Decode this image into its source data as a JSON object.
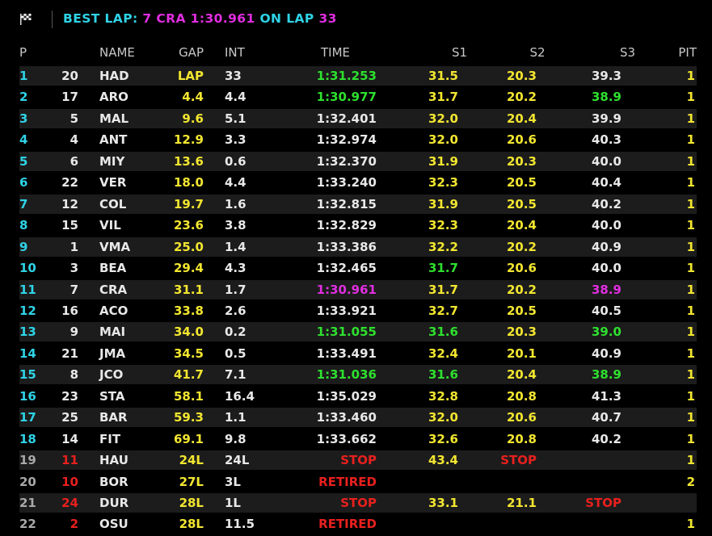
{
  "header": {
    "best_lap_label": "BEST LAP:",
    "best_lap_value": "7 CRA 1:30.961",
    "on_lap_label": "ON LAP",
    "lap_number": "33"
  },
  "columns": {
    "p": "P",
    "name": "NAME",
    "gap": "GAP",
    "int": "INT",
    "time": "TIME",
    "s1": "S1",
    "s2": "S2",
    "s3": "S3",
    "pit": "PIT"
  },
  "colors": {
    "cyan": "#2fd3e6",
    "yellow": "#f2e630",
    "green": "#2ee02e",
    "magenta": "#e02ee0",
    "red": "#e8201e",
    "row_alt": "#1c1c1c"
  },
  "rows": [
    {
      "p": "1",
      "num": "20",
      "name": "HAD",
      "gap": "LAP",
      "int": "33",
      "time": "1:31.253",
      "s1": "31.5",
      "s2": "20.3",
      "s3": "39.3",
      "pit": "1",
      "time_c": "green",
      "s1_c": "yellow",
      "s2_c": "yellow",
      "s3_c": "white",
      "p_c": "cyan",
      "num_c": "white"
    },
    {
      "p": "2",
      "num": "17",
      "name": "ARO",
      "gap": "4.4",
      "int": "4.4",
      "time": "1:30.977",
      "s1": "31.7",
      "s2": "20.2",
      "s3": "38.9",
      "pit": "1",
      "time_c": "green",
      "s1_c": "yellow",
      "s2_c": "yellow",
      "s3_c": "green",
      "p_c": "cyan",
      "num_c": "white"
    },
    {
      "p": "3",
      "num": "5",
      "name": "MAL",
      "gap": "9.6",
      "int": "5.1",
      "time": "1:32.401",
      "s1": "32.0",
      "s2": "20.4",
      "s3": "39.9",
      "pit": "1",
      "time_c": "white",
      "s1_c": "yellow",
      "s2_c": "yellow",
      "s3_c": "white",
      "p_c": "cyan",
      "num_c": "white"
    },
    {
      "p": "4",
      "num": "4",
      "name": "ANT",
      "gap": "12.9",
      "int": "3.3",
      "time": "1:32.974",
      "s1": "32.0",
      "s2": "20.6",
      "s3": "40.3",
      "pit": "1",
      "time_c": "white",
      "s1_c": "yellow",
      "s2_c": "yellow",
      "s3_c": "white",
      "p_c": "cyan",
      "num_c": "white"
    },
    {
      "p": "5",
      "num": "6",
      "name": "MIY",
      "gap": "13.6",
      "int": "0.6",
      "time": "1:32.370",
      "s1": "31.9",
      "s2": "20.3",
      "s3": "40.0",
      "pit": "1",
      "time_c": "white",
      "s1_c": "yellow",
      "s2_c": "yellow",
      "s3_c": "white",
      "p_c": "cyan",
      "num_c": "white"
    },
    {
      "p": "6",
      "num": "22",
      "name": "VER",
      "gap": "18.0",
      "int": "4.4",
      "time": "1:33.240",
      "s1": "32.3",
      "s2": "20.5",
      "s3": "40.4",
      "pit": "1",
      "time_c": "white",
      "s1_c": "yellow",
      "s2_c": "yellow",
      "s3_c": "white",
      "p_c": "cyan",
      "num_c": "white"
    },
    {
      "p": "7",
      "num": "12",
      "name": "COL",
      "gap": "19.7",
      "int": "1.6",
      "time": "1:32.815",
      "s1": "31.9",
      "s2": "20.5",
      "s3": "40.2",
      "pit": "1",
      "time_c": "white",
      "s1_c": "yellow",
      "s2_c": "yellow",
      "s3_c": "white",
      "p_c": "cyan",
      "num_c": "white"
    },
    {
      "p": "8",
      "num": "15",
      "name": "VIL",
      "gap": "23.6",
      "int": "3.8",
      "time": "1:32.829",
      "s1": "32.3",
      "s2": "20.4",
      "s3": "40.0",
      "pit": "1",
      "time_c": "white",
      "s1_c": "yellow",
      "s2_c": "yellow",
      "s3_c": "white",
      "p_c": "cyan",
      "num_c": "white"
    },
    {
      "p": "9",
      "num": "1",
      "name": "VMA",
      "gap": "25.0",
      "int": "1.4",
      "time": "1:33.386",
      "s1": "32.2",
      "s2": "20.2",
      "s3": "40.9",
      "pit": "1",
      "time_c": "white",
      "s1_c": "yellow",
      "s2_c": "yellow",
      "s3_c": "white",
      "p_c": "cyan",
      "num_c": "white"
    },
    {
      "p": "10",
      "num": "3",
      "name": "BEA",
      "gap": "29.4",
      "int": "4.3",
      "time": "1:32.465",
      "s1": "31.7",
      "s2": "20.6",
      "s3": "40.0",
      "pit": "1",
      "time_c": "white",
      "s1_c": "green",
      "s2_c": "yellow",
      "s3_c": "white",
      "p_c": "cyan",
      "num_c": "white"
    },
    {
      "p": "11",
      "num": "7",
      "name": "CRA",
      "gap": "31.1",
      "int": "1.7",
      "time": "1:30.961",
      "s1": "31.7",
      "s2": "20.2",
      "s3": "38.9",
      "pit": "1",
      "time_c": "magenta",
      "s1_c": "yellow",
      "s2_c": "yellow",
      "s3_c": "magenta",
      "p_c": "cyan",
      "num_c": "white"
    },
    {
      "p": "12",
      "num": "16",
      "name": "ACO",
      "gap": "33.8",
      "int": "2.6",
      "time": "1:33.921",
      "s1": "32.7",
      "s2": "20.5",
      "s3": "40.5",
      "pit": "1",
      "time_c": "white",
      "s1_c": "yellow",
      "s2_c": "yellow",
      "s3_c": "white",
      "p_c": "cyan",
      "num_c": "white"
    },
    {
      "p": "13",
      "num": "9",
      "name": "MAI",
      "gap": "34.0",
      "int": "0.2",
      "time": "1:31.055",
      "s1": "31.6",
      "s2": "20.3",
      "s3": "39.0",
      "pit": "1",
      "time_c": "green",
      "s1_c": "green",
      "s2_c": "yellow",
      "s3_c": "green",
      "p_c": "cyan",
      "num_c": "white"
    },
    {
      "p": "14",
      "num": "21",
      "name": "JMA",
      "gap": "34.5",
      "int": "0.5",
      "time": "1:33.491",
      "s1": "32.4",
      "s2": "20.1",
      "s3": "40.9",
      "pit": "1",
      "time_c": "white",
      "s1_c": "yellow",
      "s2_c": "yellow",
      "s3_c": "white",
      "p_c": "cyan",
      "num_c": "white"
    },
    {
      "p": "15",
      "num": "8",
      "name": "JCO",
      "gap": "41.7",
      "int": "7.1",
      "time": "1:31.036",
      "s1": "31.6",
      "s2": "20.4",
      "s3": "38.9",
      "pit": "1",
      "time_c": "green",
      "s1_c": "green",
      "s2_c": "yellow",
      "s3_c": "green",
      "p_c": "cyan",
      "num_c": "white"
    },
    {
      "p": "16",
      "num": "23",
      "name": "STA",
      "gap": "58.1",
      "int": "16.4",
      "time": "1:35.029",
      "s1": "32.8",
      "s2": "20.8",
      "s3": "41.3",
      "pit": "1",
      "time_c": "white",
      "s1_c": "yellow",
      "s2_c": "yellow",
      "s3_c": "white",
      "p_c": "cyan",
      "num_c": "white"
    },
    {
      "p": "17",
      "num": "25",
      "name": "BAR",
      "gap": "59.3",
      "int": "1.1",
      "time": "1:33.460",
      "s1": "32.0",
      "s2": "20.6",
      "s3": "40.7",
      "pit": "1",
      "time_c": "white",
      "s1_c": "yellow",
      "s2_c": "yellow",
      "s3_c": "white",
      "p_c": "cyan",
      "num_c": "white"
    },
    {
      "p": "18",
      "num": "14",
      "name": "FIT",
      "gap": "69.1",
      "int": "9.8",
      "time": "1:33.662",
      "s1": "32.6",
      "s2": "20.8",
      "s3": "40.2",
      "pit": "1",
      "time_c": "white",
      "s1_c": "yellow",
      "s2_c": "yellow",
      "s3_c": "white",
      "p_c": "cyan",
      "num_c": "white"
    },
    {
      "p": "19",
      "num": "11",
      "name": "HAU",
      "gap": "24L",
      "int": "24L",
      "time": "STOP",
      "s1": "43.4",
      "s2": "STOP",
      "s3": "",
      "pit": "1",
      "time_c": "red",
      "s1_c": "yellow",
      "s2_c": "red",
      "s3_c": "white",
      "p_c": "grey",
      "num_c": "red"
    },
    {
      "p": "20",
      "num": "10",
      "name": "BOR",
      "gap": "27L",
      "int": "3L",
      "time": "RETIRED",
      "s1": "",
      "s2": "",
      "s3": "",
      "pit": "2",
      "time_c": "red",
      "s1_c": "yellow",
      "s2_c": "yellow",
      "s3_c": "white",
      "p_c": "grey",
      "num_c": "red"
    },
    {
      "p": "21",
      "num": "24",
      "name": "DUR",
      "gap": "28L",
      "int": "1L",
      "time": "STOP",
      "s1": "33.1",
      "s2": "21.1",
      "s3": "STOP",
      "pit": "",
      "time_c": "red",
      "s1_c": "yellow",
      "s2_c": "yellow",
      "s3_c": "red",
      "p_c": "grey",
      "num_c": "red"
    },
    {
      "p": "22",
      "num": "2",
      "name": "OSU",
      "gap": "28L",
      "int": "11.5",
      "time": "RETIRED",
      "s1": "",
      "s2": "",
      "s3": "",
      "pit": "1",
      "time_c": "red",
      "s1_c": "yellow",
      "s2_c": "yellow",
      "s3_c": "white",
      "p_c": "grey",
      "num_c": "red"
    }
  ]
}
